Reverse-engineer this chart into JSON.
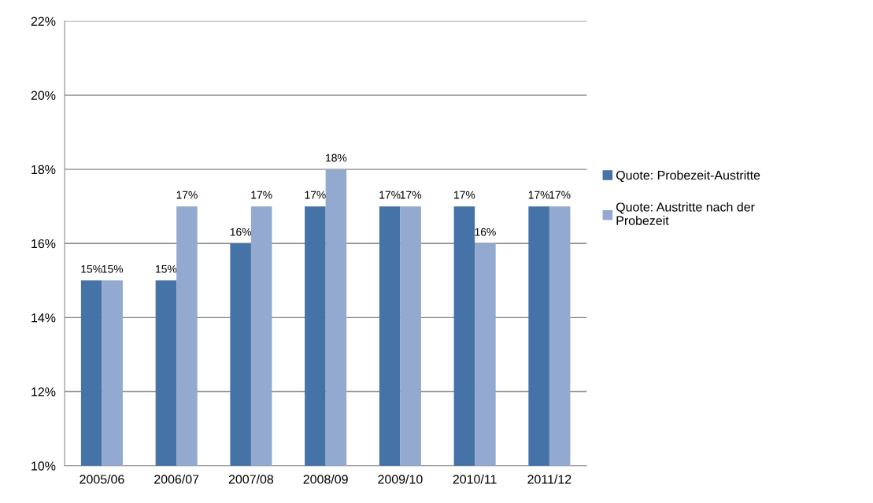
{
  "chart_data": {
    "type": "bar",
    "categories": [
      "2005/06",
      "2006/07",
      "2007/08",
      "2008/09",
      "2009/10",
      "2010/11",
      "2011/12"
    ],
    "series": [
      {
        "name": "Quote: Probezeit-Austritte",
        "color": "#4572a7",
        "values": [
          15,
          15,
          16,
          17,
          17,
          17,
          17
        ],
        "value_labels": [
          "15%",
          "15%",
          "16%",
          "17%",
          "17%",
          "17%",
          "17%"
        ]
      },
      {
        "name": "Quote: Austritte nach der\nProbezeit",
        "color": "#93a9cf",
        "values": [
          15,
          17,
          17,
          18,
          17,
          16,
          17
        ],
        "value_labels": [
          "15%",
          "17%",
          "17%",
          "18%",
          "17%",
          "16%",
          "17%"
        ]
      }
    ],
    "ylim": [
      10,
      22
    ],
    "yticks": [
      {
        "value": 10,
        "label": "10%"
      },
      {
        "value": 12,
        "label": "12%"
      },
      {
        "value": 14,
        "label": "14%"
      },
      {
        "value": 16,
        "label": "16%"
      },
      {
        "value": 18,
        "label": "18%"
      },
      {
        "value": 20,
        "label": "20%"
      },
      {
        "value": 22,
        "label": "22%"
      }
    ],
    "grid": "y",
    "legend": "right"
  }
}
